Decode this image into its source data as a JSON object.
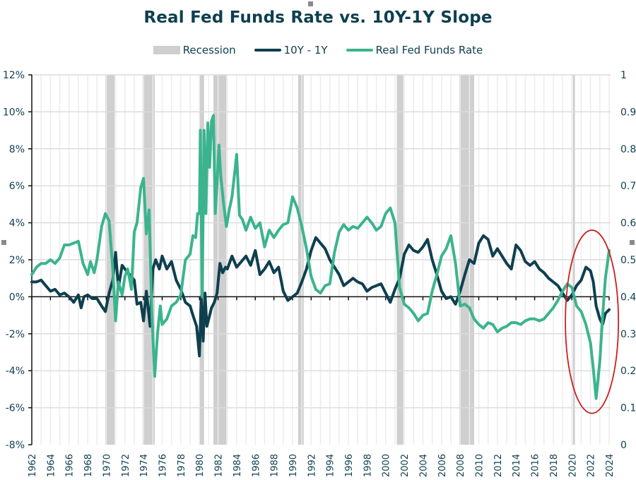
{
  "chart_data": {
    "type": "line",
    "title": "Real Fed Funds Rate vs. 10Y-1Y Slope",
    "xlabel": "",
    "ylabel": "",
    "xlim": [
      1962,
      2024
    ],
    "ylim": [
      -8,
      12
    ],
    "y2lim": [
      0,
      1
    ],
    "grid": true,
    "legend_position": "top-center",
    "y_ticks": [
      "12%",
      "10%",
      "8%",
      "6%",
      "4%",
      "2%",
      "0%",
      "-2%",
      "-4%",
      "-6%",
      "-8%"
    ],
    "y_tick_values": [
      12,
      10,
      8,
      6,
      4,
      2,
      0,
      -2,
      -4,
      -6,
      -8
    ],
    "y2_ticks": [
      "1",
      "0.9",
      "0.8",
      "0.7",
      "0.6",
      "0.5",
      "0.4",
      "0.3",
      "0.2",
      "0.1",
      "0"
    ],
    "y2_tick_values": [
      1,
      0.9,
      0.8,
      0.7,
      0.6,
      0.5,
      0.4,
      0.3,
      0.2,
      0.1,
      0
    ],
    "x_ticks": [
      "1962",
      "1964",
      "1966",
      "1968",
      "1970",
      "1972",
      "1974",
      "1976",
      "1978",
      "1980",
      "1982",
      "1984",
      "1986",
      "1988",
      "1990",
      "1992",
      "1994",
      "1996",
      "1998",
      "2000",
      "2002",
      "2004",
      "2006",
      "2008",
      "2010",
      "2012",
      "2014",
      "2016",
      "2018",
      "2020",
      "2022",
      "2024"
    ],
    "legend": [
      {
        "name": "Recession",
        "kind": "area",
        "color": "#cfcfcf"
      },
      {
        "name": "10Y - 1Y",
        "kind": "line",
        "color": "#0e3f4f"
      },
      {
        "name": "Real Fed Funds Rate",
        "kind": "line",
        "color": "#3bb48e"
      }
    ],
    "recessions": [
      [
        1969.9,
        1970.9
      ],
      [
        1973.9,
        1975.2
      ],
      [
        1980.0,
        1980.5
      ],
      [
        1981.5,
        1982.9
      ],
      [
        1990.6,
        1991.2
      ],
      [
        2001.2,
        2001.9
      ],
      [
        2007.9,
        2009.5
      ],
      [
        2020.1,
        2020.3
      ]
    ],
    "series": [
      {
        "name": "10Y - 1Y",
        "color": "#0e3f4f",
        "x": [
          1962.0,
          1962.5,
          1963.0,
          1963.5,
          1964.0,
          1964.5,
          1965.0,
          1965.5,
          1966.0,
          1966.5,
          1967.0,
          1967.3,
          1967.6,
          1968.0,
          1968.5,
          1969.0,
          1969.5,
          1969.9,
          1970.3,
          1970.7,
          1971.0,
          1971.3,
          1971.7,
          1972.0,
          1972.5,
          1973.0,
          1973.3,
          1973.7,
          1974.0,
          1974.3,
          1974.7,
          1975.0,
          1975.3,
          1975.7,
          1976.0,
          1976.5,
          1977.0,
          1977.5,
          1978.0,
          1978.5,
          1979.0,
          1979.3,
          1979.7,
          1980.0,
          1980.2,
          1980.4,
          1980.6,
          1980.8,
          1981.0,
          1981.3,
          1981.6,
          1981.9,
          1982.2,
          1982.5,
          1982.8,
          1983.0,
          1983.5,
          1984.0,
          1984.5,
          1985.0,
          1985.5,
          1986.0,
          1986.5,
          1987.0,
          1987.5,
          1988.0,
          1988.5,
          1989.0,
          1989.5,
          1990.0,
          1990.5,
          1991.0,
          1991.5,
          1992.0,
          1992.5,
          1993.0,
          1993.5,
          1994.0,
          1994.5,
          1995.0,
          1995.5,
          1996.0,
          1996.5,
          1997.0,
          1997.5,
          1998.0,
          1998.5,
          1999.0,
          1999.5,
          2000.0,
          2000.5,
          2001.0,
          2001.5,
          2002.0,
          2002.5,
          2003.0,
          2003.5,
          2004.0,
          2004.5,
          2005.0,
          2005.5,
          2006.0,
          2006.5,
          2007.0,
          2007.5,
          2008.0,
          2008.5,
          2009.0,
          2009.5,
          2010.0,
          2010.5,
          2011.0,
          2011.5,
          2012.0,
          2012.5,
          2013.0,
          2013.5,
          2014.0,
          2014.5,
          2015.0,
          2015.5,
          2016.0,
          2016.5,
          2017.0,
          2017.5,
          2018.0,
          2018.5,
          2019.0,
          2019.5,
          2020.0,
          2020.5,
          2021.0,
          2021.5,
          2022.0,
          2022.3,
          2022.6,
          2023.0,
          2023.3,
          2023.6,
          2024.0
        ],
        "values": [
          0.8,
          0.8,
          0.9,
          0.6,
          0.3,
          0.4,
          0.1,
          0.2,
          0.0,
          -0.3,
          0.1,
          -0.6,
          0.0,
          0.1,
          -0.1,
          -0.1,
          -0.5,
          -0.8,
          0.2,
          0.9,
          2.4,
          0.5,
          1.7,
          1.5,
          1.2,
          0.9,
          -0.4,
          -0.3,
          -1.3,
          0.3,
          -1.6,
          1.5,
          2.0,
          1.5,
          2.2,
          1.5,
          1.9,
          0.9,
          0.4,
          -0.3,
          -0.5,
          -1.0,
          -1.6,
          -3.2,
          0.0,
          -2.4,
          0.2,
          -1.6,
          -1.2,
          -0.6,
          -0.3,
          0.2,
          1.8,
          1.3,
          1.6,
          1.5,
          2.2,
          1.6,
          1.9,
          2.2,
          1.7,
          2.5,
          1.2,
          1.5,
          1.9,
          1.3,
          1.6,
          0.3,
          -0.2,
          0.0,
          0.2,
          0.8,
          1.5,
          2.5,
          3.2,
          2.9,
          2.6,
          2.0,
          1.6,
          1.2,
          0.6,
          0.8,
          1.0,
          0.8,
          0.7,
          0.3,
          0.5,
          0.6,
          0.7,
          0.2,
          -0.3,
          0.4,
          1.0,
          2.3,
          2.8,
          2.5,
          2.4,
          2.7,
          3.1,
          2.0,
          1.2,
          0.3,
          -0.1,
          0.0,
          -0.4,
          0.3,
          1.2,
          2.0,
          1.8,
          2.9,
          3.3,
          3.1,
          2.2,
          2.6,
          2.2,
          1.8,
          1.5,
          2.8,
          2.5,
          1.9,
          1.7,
          1.9,
          1.5,
          1.3,
          1.0,
          0.8,
          0.6,
          0.2,
          -0.2,
          0.1,
          0.6,
          0.9,
          1.6,
          1.4,
          0.8,
          -0.5,
          -1.2,
          -1.5,
          -0.9,
          -0.7
        ]
      },
      {
        "name": "Real Fed Funds Rate",
        "color": "#3bb48e",
        "x": [
          1962.0,
          1962.5,
          1963.0,
          1963.5,
          1964.0,
          1964.5,
          1965.0,
          1965.5,
          1966.0,
          1966.5,
          1967.0,
          1967.5,
          1968.0,
          1968.3,
          1968.7,
          1969.0,
          1969.5,
          1969.9,
          1970.3,
          1970.7,
          1971.0,
          1971.3,
          1971.7,
          1972.0,
          1972.3,
          1972.7,
          1973.0,
          1973.3,
          1973.7,
          1974.0,
          1974.3,
          1974.6,
          1974.9,
          1975.2,
          1975.5,
          1975.8,
          1976.0,
          1976.5,
          1977.0,
          1977.5,
          1978.0,
          1978.5,
          1979.0,
          1979.3,
          1979.6,
          1979.8,
          1980.0,
          1980.1,
          1980.3,
          1980.5,
          1980.7,
          1980.9,
          1981.1,
          1981.3,
          1981.5,
          1981.7,
          1981.9,
          1982.1,
          1982.3,
          1982.6,
          1982.9,
          1983.2,
          1983.5,
          1984.0,
          1984.3,
          1984.6,
          1985.0,
          1985.5,
          1986.0,
          1986.5,
          1987.0,
          1987.5,
          1988.0,
          1988.5,
          1989.0,
          1989.5,
          1990.0,
          1990.5,
          1991.0,
          1991.5,
          1992.0,
          1992.5,
          1993.0,
          1993.5,
          1994.0,
          1994.5,
          1995.0,
          1995.5,
          1996.0,
          1996.5,
          1997.0,
          1997.5,
          1998.0,
          1998.5,
          1999.0,
          1999.5,
          2000.0,
          2000.5,
          2001.0,
          2001.5,
          2002.0,
          2002.5,
          2003.0,
          2003.5,
          2004.0,
          2004.5,
          2005.0,
          2005.5,
          2006.0,
          2006.5,
          2007.0,
          2007.5,
          2008.0,
          2008.5,
          2009.0,
          2009.5,
          2010.0,
          2010.5,
          2011.0,
          2011.5,
          2012.0,
          2012.5,
          2013.0,
          2013.5,
          2014.0,
          2014.5,
          2015.0,
          2015.5,
          2016.0,
          2016.5,
          2017.0,
          2017.5,
          2018.0,
          2018.5,
          2019.0,
          2019.5,
          2020.0,
          2020.5,
          2021.0,
          2021.5,
          2022.0,
          2022.3,
          2022.6,
          2023.0,
          2023.3,
          2023.6,
          2024.0
        ],
        "values": [
          1.2,
          1.6,
          1.8,
          1.8,
          2.0,
          1.8,
          2.1,
          2.8,
          2.8,
          2.9,
          3.0,
          1.8,
          1.2,
          1.9,
          1.3,
          2.0,
          3.8,
          4.5,
          4.1,
          1.5,
          -1.3,
          0.8,
          0.1,
          1.1,
          1.5,
          0.4,
          3.5,
          4.0,
          5.9,
          6.4,
          3.4,
          4.7,
          -1.0,
          -4.3,
          -2.0,
          -0.5,
          -1.5,
          -1.2,
          -0.5,
          -0.3,
          0.1,
          2.0,
          2.3,
          3.3,
          3.2,
          4.5,
          4.5,
          9.0,
          0.0,
          9.0,
          4.5,
          9.4,
          7.0,
          9.5,
          9.8,
          4.5,
          6.2,
          8.2,
          6.5,
          5.0,
          3.8,
          4.7,
          5.4,
          7.7,
          4.4,
          4.2,
          3.6,
          4.3,
          3.7,
          4.0,
          2.7,
          3.6,
          3.2,
          3.6,
          3.9,
          4.0,
          5.4,
          4.8,
          3.8,
          2.6,
          1.1,
          0.4,
          0.2,
          0.6,
          0.7,
          2.4,
          3.5,
          3.9,
          3.6,
          3.8,
          3.7,
          4.0,
          4.3,
          4.0,
          3.6,
          3.8,
          4.5,
          4.8,
          4.0,
          0.5,
          -0.4,
          -0.6,
          -0.9,
          -1.3,
          -1.0,
          -0.9,
          0.3,
          1.2,
          2.2,
          2.6,
          3.3,
          1.8,
          -0.5,
          -0.4,
          -0.6,
          -1.2,
          -1.5,
          -1.7,
          -1.4,
          -1.5,
          -1.9,
          -1.7,
          -1.6,
          -1.4,
          -1.4,
          -1.5,
          -1.3,
          -1.2,
          -1.2,
          -1.3,
          -1.2,
          -0.9,
          -0.6,
          -0.2,
          0.3,
          0.7,
          0.5,
          -0.5,
          -0.8,
          -1.5,
          -2.5,
          -3.9,
          -5.5,
          -3.5,
          -1.0,
          1.0,
          2.5
        ]
      }
    ],
    "annotations": [
      {
        "type": "ellipse",
        "color": "#cc1f1f",
        "x_range": [
          2019.3,
          2025.0
        ],
        "y_range": [
          -6.3,
          3.6
        ],
        "note": "highlights 2020-2024 period"
      }
    ]
  }
}
